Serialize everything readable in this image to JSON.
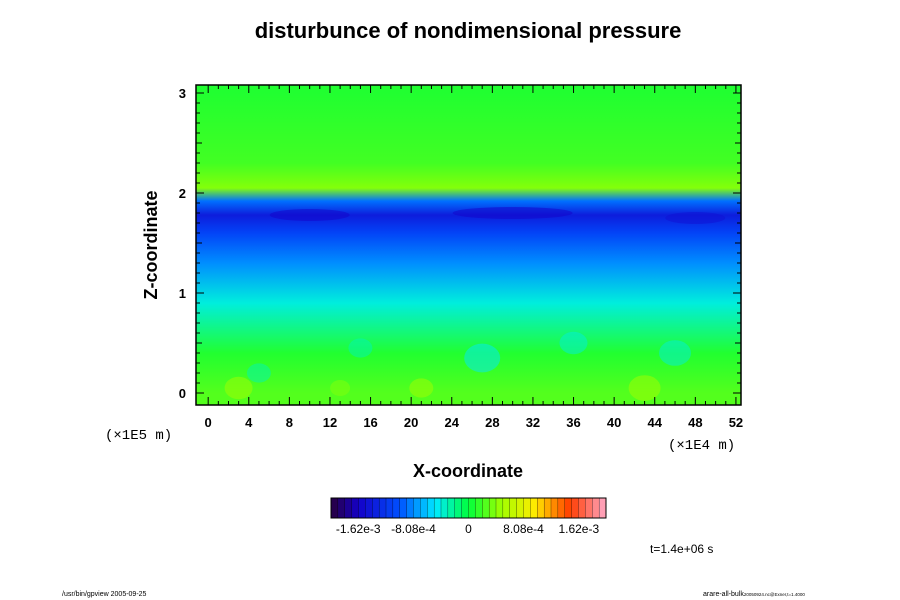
{
  "chart_data": {
    "type": "heatmap",
    "title": "disturbunce of nondimensional pressure",
    "xlabel": "X-coordinate",
    "ylabel": "Z-coordinate",
    "x_ticks": [
      "0",
      "4",
      "8",
      "12",
      "16",
      "20",
      "24",
      "28",
      "32",
      "36",
      "40",
      "44",
      "48",
      "52"
    ],
    "y_ticks": [
      "0",
      "1",
      "2",
      "3"
    ],
    "x_unit": "(×1E4 m)",
    "y_unit": "(×1E5 m)",
    "xlim": [
      -1.2,
      52.5
    ],
    "ylim": [
      -0.12,
      3.08
    ],
    "grid": false,
    "colorbar": {
      "range": [
        -0.00202,
        0.00202
      ],
      "tick_labels": [
        "-1.62e-3",
        "-8.08e-4",
        "0",
        "8.08e-4",
        "1.62e-3"
      ],
      "tick_values": [
        -0.00162,
        -0.000808,
        0,
        0.000808,
        0.00162
      ]
    },
    "field_profile": {
      "description_z": [
        0,
        0.4,
        0.9,
        1.3,
        1.6,
        1.78,
        1.92,
        2.05,
        2.3,
        3.0
      ],
      "values": [
        0.00025,
        0.0001,
        -0.0004,
        -0.0008,
        -0.0011,
        -0.0014,
        -0.0009,
        0.0004,
        0.0002,
        0.0001
      ]
    },
    "time_label": "t=1.4e+06 s"
  },
  "footer": {
    "left": "/usr/bin/gpview 2005-09-25",
    "right_main": "arare-all-bulk",
    "right_small": "20050924.nc@Exner,t=1.4000"
  },
  "colors": {
    "background": "#ffffff",
    "text": "#000000"
  }
}
